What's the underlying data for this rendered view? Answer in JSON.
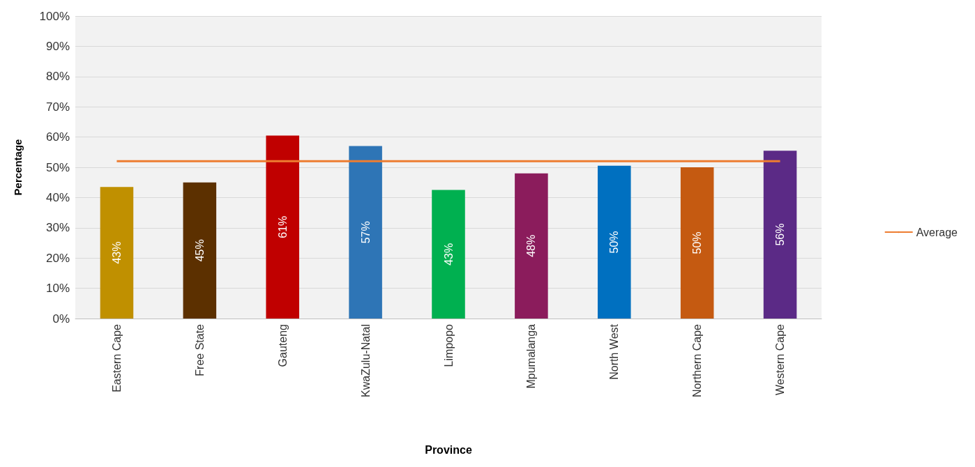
{
  "chart_data": {
    "type": "bar",
    "xlabel": "Province",
    "ylabel": "Percentage",
    "categories": [
      "Eastern Cape",
      "Free State",
      "Gauteng",
      "KwaZulu-Natal",
      "Limpopo",
      "Mpumalanga",
      "North West",
      "Northern Cape",
      "Western Cape"
    ],
    "series": [
      {
        "values": [
          43.5,
          45,
          60.5,
          57,
          42.5,
          48,
          50.5,
          50,
          55.5
        ],
        "value_labels": [
          "43%",
          "45%",
          "61%",
          "57%",
          "43%",
          "48%",
          "50%",
          "50%",
          "56%"
        ],
        "colors": [
          "#c09000",
          "#5c3000",
          "#c00000",
          "#2e75b6",
          "#00b050",
          "#8b1c5c",
          "#0070c0",
          "#c55a11",
          "#5b2a86"
        ]
      },
      {
        "type": "line",
        "name": "Average",
        "color": "#ed7d31",
        "values": [
          52,
          52,
          52,
          52,
          52,
          52,
          52,
          52,
          52
        ]
      }
    ],
    "ylim": [
      0,
      100
    ],
    "yticks": [
      {
        "value": 0,
        "label": "0%"
      },
      {
        "value": 10,
        "label": "10%"
      },
      {
        "value": 20,
        "label": "20%"
      },
      {
        "value": 30,
        "label": "30%"
      },
      {
        "value": 40,
        "label": "40%"
      },
      {
        "value": 50,
        "label": "50%"
      },
      {
        "value": 60,
        "label": "60%"
      },
      {
        "value": 70,
        "label": "70%"
      },
      {
        "value": 80,
        "label": "80%"
      },
      {
        "value": 90,
        "label": "90%"
      },
      {
        "value": 100,
        "label": "100%"
      }
    ],
    "grid": "y",
    "legend": "right",
    "marker": "none"
  }
}
